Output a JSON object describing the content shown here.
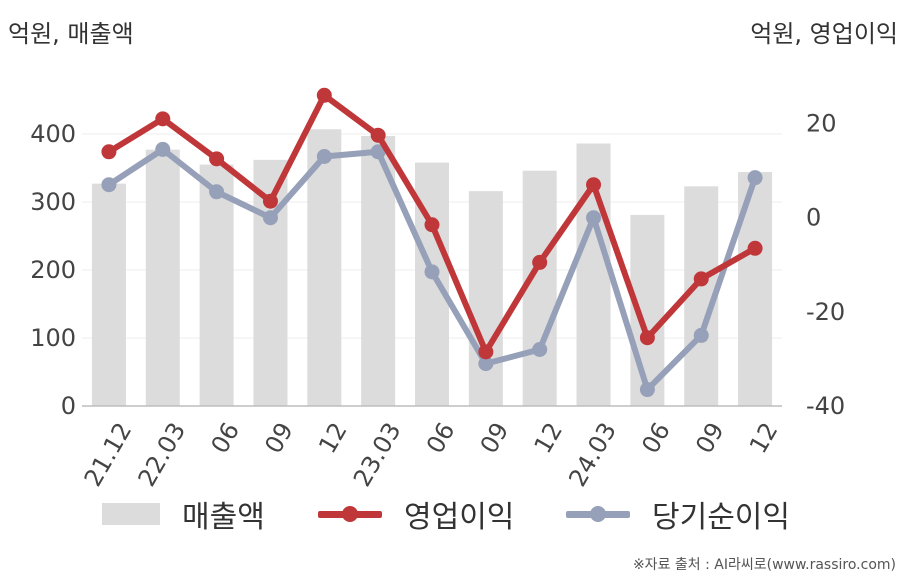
{
  "units": {
    "left": "억원, 매출액",
    "right": "억원, 영업이익"
  },
  "source": "※자료 출처 : AI라씨로(www.rassiro.com)",
  "legend": [
    {
      "label": "매출액",
      "kind": "bar",
      "color": "#dcdcdc"
    },
    {
      "label": "영업이익",
      "kind": "line",
      "color": "#c0373a"
    },
    {
      "label": "당기순이익",
      "kind": "line",
      "color": "#96a0b8"
    }
  ],
  "chart_data": {
    "type": "bar+line",
    "categories": [
      "21.12",
      "22.03",
      "06",
      "09",
      "12",
      "23.03",
      "06",
      "09",
      "12",
      "24.03",
      "06",
      "09",
      "12"
    ],
    "left_axis": {
      "ylim": [
        0,
        450
      ],
      "ticks": [
        0,
        100,
        200,
        300,
        400
      ]
    },
    "right_axis": {
      "ylim": [
        -40,
        25
      ],
      "ticks": [
        -40,
        -20,
        0,
        20
      ]
    },
    "grid": true,
    "legend_position": "bottom",
    "series": [
      {
        "name": "매출액",
        "type": "bar",
        "axis": "left",
        "color": "#dcdcdc",
        "values": [
          327,
          377,
          355,
          362,
          407,
          397,
          358,
          316,
          346,
          386,
          281,
          323,
          344
        ]
      },
      {
        "name": "영업이익",
        "type": "line",
        "axis": "right",
        "color": "#c0373a",
        "values": [
          14,
          21,
          12.5,
          3.5,
          26,
          17.5,
          -1.5,
          -28.5,
          -9.5,
          7,
          -25.5,
          -13,
          -6.5
        ]
      },
      {
        "name": "당기순이익",
        "type": "line",
        "axis": "right",
        "color": "#96a0b8",
        "values": [
          7,
          14.5,
          5.5,
          0,
          13,
          14,
          -11.5,
          -31,
          -28,
          0,
          -36.5,
          -25,
          8.5
        ]
      }
    ]
  }
}
